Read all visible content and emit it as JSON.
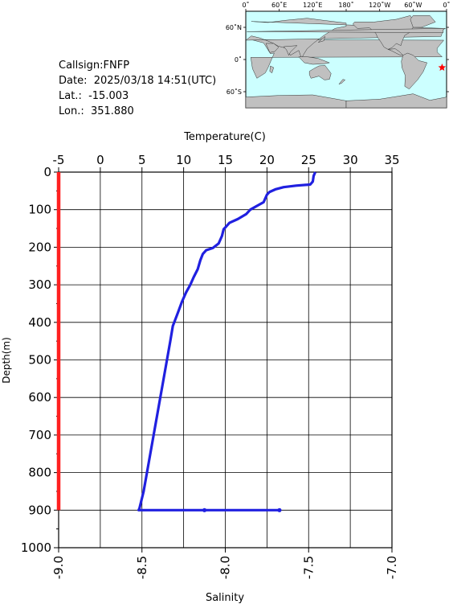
{
  "station": {
    "callsign": "Callsign:FNFP",
    "date": "Date:  2025/03/18 14:51(UTC)",
    "lat": "Lat.:  -15.003",
    "lon": "Lon.:  351.880"
  },
  "map": {
    "top_ticks": [
      "0˚",
      "60˚E",
      "120˚E",
      "180˚",
      "120˚W",
      "60˚W",
      "0˚"
    ],
    "left_ticks": [
      "60˚N",
      "0˚",
      "60˚S"
    ],
    "ocean_color": "#ccffff",
    "land_color": "#c0c0c0",
    "marker_color": "#ff0000",
    "marker_lat": -15.003,
    "marker_lon": 351.88
  },
  "chart_data": {
    "type": "line",
    "top_axis_label": "Temperature(C)",
    "bottom_axis_label": "Salinity",
    "left_axis_label": "Depth(m)",
    "temperature_ticks": [
      "-5",
      "0",
      "5",
      "10",
      "15",
      "20",
      "25",
      "30",
      "35"
    ],
    "salinity_ticks": [
      "-9.0",
      "-8.5",
      "-8.0",
      "-7.5",
      "-7.0"
    ],
    "depth_ticks": [
      "0",
      "100",
      "200",
      "300",
      "400",
      "500",
      "600",
      "700",
      "800",
      "900",
      "1000"
    ],
    "temperature_range": [
      -5,
      35
    ],
    "salinity_range": [
      -9.0,
      -7.0
    ],
    "depth_range": [
      0,
      1000
    ],
    "grid": true,
    "series": [
      {
        "variable": "temperature",
        "color": "#2020e0",
        "points": [
          [
            25.8,
            0
          ],
          [
            25.6,
            10
          ],
          [
            25.5,
            25
          ],
          [
            25.2,
            33
          ],
          [
            23.5,
            36
          ],
          [
            22.0,
            40
          ],
          [
            21.0,
            46
          ],
          [
            20.3,
            53
          ],
          [
            20.0,
            60
          ],
          [
            19.8,
            70
          ],
          [
            19.6,
            80
          ],
          [
            18.8,
            90
          ],
          [
            18.0,
            100
          ],
          [
            17.5,
            112
          ],
          [
            16.5,
            125
          ],
          [
            15.5,
            135
          ],
          [
            15.1,
            145
          ],
          [
            14.8,
            152
          ],
          [
            14.6,
            170
          ],
          [
            14.2,
            190
          ],
          [
            13.5,
            202
          ],
          [
            12.7,
            208
          ],
          [
            12.3,
            218
          ],
          [
            12.0,
            235
          ],
          [
            11.7,
            258
          ],
          [
            11.2,
            280
          ],
          [
            10.8,
            300
          ],
          [
            10.3,
            320
          ],
          [
            9.8,
            345
          ],
          [
            9.3,
            375
          ],
          [
            8.7,
            410
          ],
          [
            8.4,
            450
          ],
          [
            8.0,
            500
          ],
          [
            7.6,
            550
          ],
          [
            7.2,
            600
          ],
          [
            6.8,
            650
          ],
          [
            6.4,
            700
          ],
          [
            6.0,
            750
          ],
          [
            5.6,
            800
          ],
          [
            5.2,
            850
          ],
          [
            4.7,
            895
          ],
          [
            4.6,
            900
          ],
          [
            12.5,
            900
          ],
          [
            21.5,
            900
          ]
        ]
      },
      {
        "variable": "salinity",
        "color": "#ff2020",
        "points": [
          [
            -9.0,
            0
          ],
          [
            -9.0,
            900
          ]
        ]
      }
    ]
  }
}
